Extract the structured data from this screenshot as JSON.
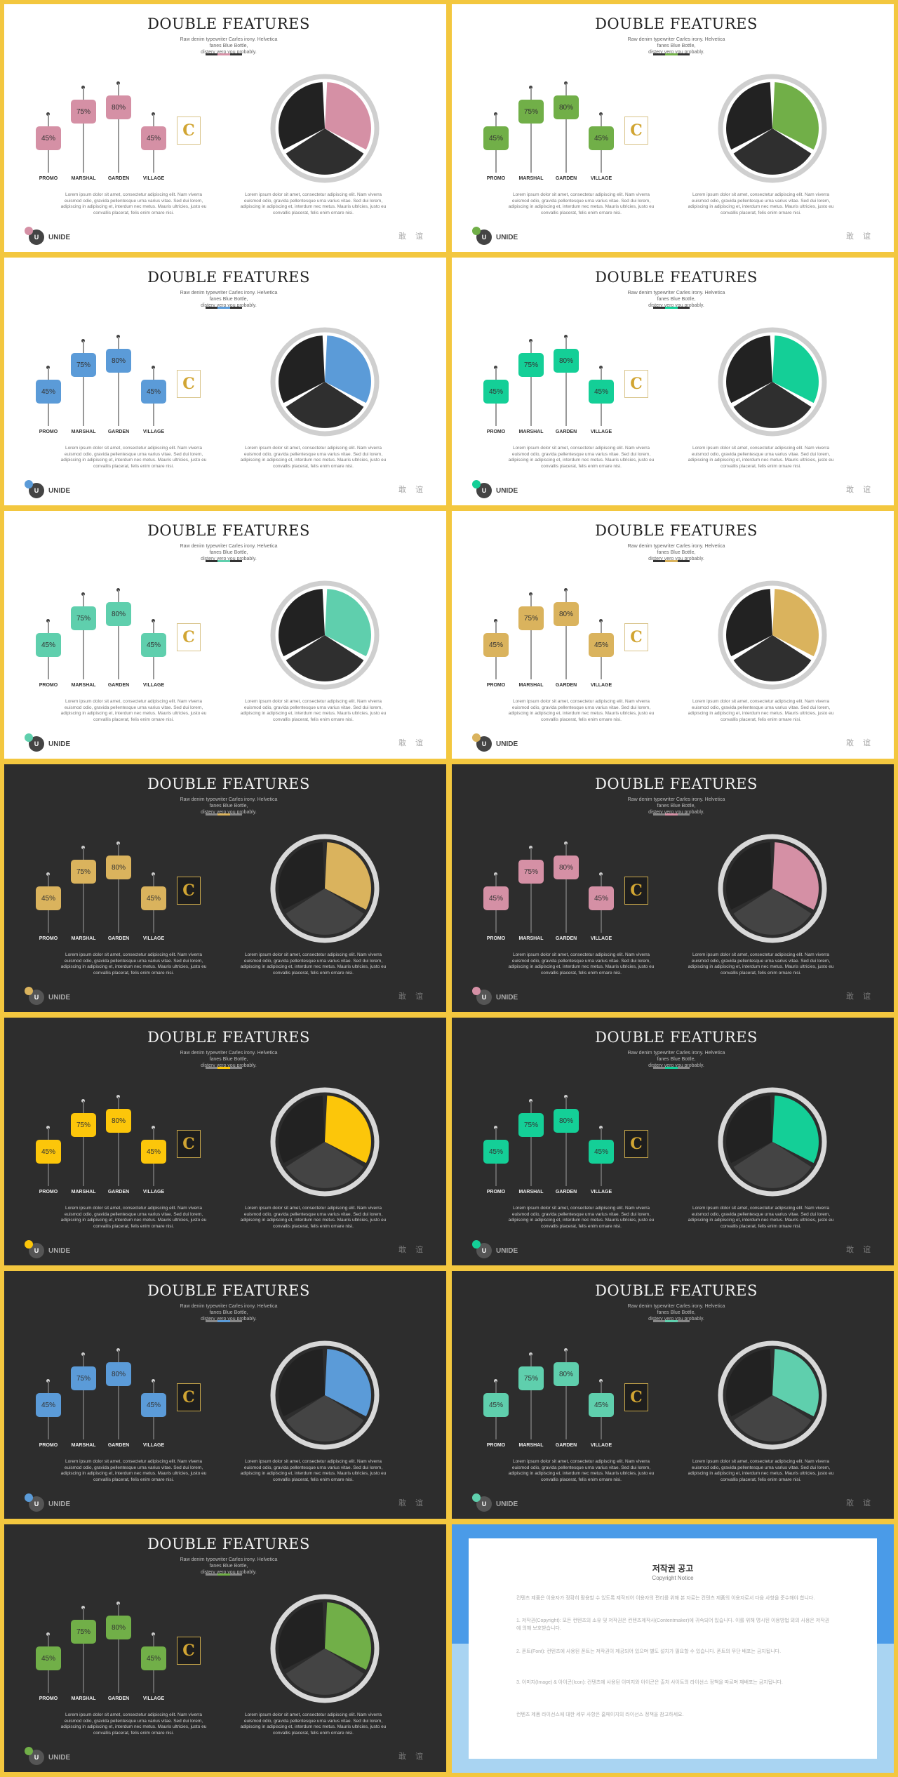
{
  "deck": {
    "slide_title": "DOUBLE FEATURES",
    "subtitle_line1": "Raw denim typewriter Carles irony. Helvetica fanes Blue Bottle,",
    "subtitle_line2": "distery vero you probably.",
    "bars": [
      {
        "label": "PROMO",
        "value": 45,
        "text": "45%"
      },
      {
        "label": "MARSHAL",
        "value": 75,
        "text": "75%"
      },
      {
        "label": "GARDEN",
        "value": 80,
        "text": "80%"
      },
      {
        "label": "VILLAGE",
        "value": 45,
        "text": "45%"
      }
    ],
    "logo_letter": "C",
    "body_text": "Lorem ipsum dolor sit amet, consectetur adipiscing elit. Nam viverra euismod odio, gravida pellentesque urna varius vitae. Sed dui lorem, adipiscing in adipiscing et, interdum nec metus. Mauris ultricies, justo eu convallis placerat, felis enim ornare nisi.",
    "brand_name": "UNIDE",
    "brand_mark": "U",
    "corner_text": "敢 谊"
  },
  "slides": [
    {
      "theme": "light",
      "accent": "#d590a5"
    },
    {
      "theme": "light",
      "accent": "#71af48"
    },
    {
      "theme": "light",
      "accent": "#5b9bd8"
    },
    {
      "theme": "light",
      "accent": "#14cf97"
    },
    {
      "theme": "light",
      "accent": "#5fcfad"
    },
    {
      "theme": "light",
      "accent": "#dab35d"
    },
    {
      "theme": "dark",
      "accent": "#dab35d"
    },
    {
      "theme": "dark",
      "accent": "#d590a5"
    },
    {
      "theme": "dark",
      "accent": "#fcc60a"
    },
    {
      "theme": "dark",
      "accent": "#14cf97"
    },
    {
      "theme": "dark",
      "accent": "#5b9bd8"
    },
    {
      "theme": "dark",
      "accent": "#5fcfad"
    },
    {
      "theme": "dark",
      "accent": "#71af48"
    }
  ],
  "notice": {
    "title": "저작권 공고",
    "subtitle": "Copyright Notice",
    "paragraphs": [
      "컨텐츠 제품은 이용자가 정확히 활용할 수 있도록 제작되어 이용자의 편리를 위해 본 자료는 컨텐츠 제품의 이용자로서 다음 사항을 준수해야 합니다.",
      "1. 저작권(Copyright): 모든 컨텐츠의 소유 및 저작권은 컨텐츠제작사(Contentmaker)에 귀속되어 있습니다. 이를 위해 명시된 이용방법 외의 사용은 저작권에 의해 보호받습니다.",
      "2. 폰트(Font): 컨텐츠에 사용된 폰트는 저작권이 제공되어 있으며 별도 설치가 필요할 수 있습니다. 폰트의 무단 배포는 금지됩니다.",
      "3. 이미지(Image) & 아이콘(Icon): 컨텐츠에 사용된 이미지와 아이콘은 출처 사이트의 라이선스 정책을 따르며 재배포는 금지됩니다.",
      "컨텐츠 제품 라이선스에 대한 세부 사항은 홈페이지의 라이선스 정책을 참고하세요."
    ]
  }
}
